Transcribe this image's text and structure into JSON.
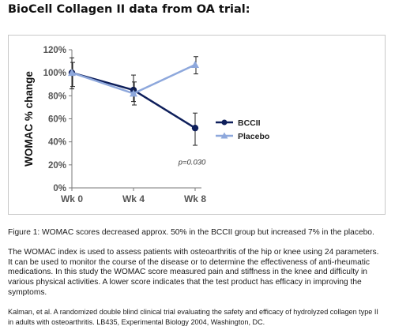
{
  "page_title": "BioCell Collagen II data from OA trial:",
  "chart_data": {
    "type": "line",
    "categories": [
      "Wk 0",
      "Wk 4",
      "Wk 8"
    ],
    "ylabel": "WOMAC % change",
    "xlabel": "",
    "ylim": [
      0,
      120
    ],
    "yticks": [
      0,
      20,
      40,
      60,
      80,
      100,
      120
    ],
    "ytick_labels": [
      "0%",
      "20%",
      "40%",
      "60%",
      "80%",
      "100%",
      "120%"
    ],
    "grid": false,
    "legend_position": "right",
    "series": [
      {
        "name": "BCCII",
        "color": "#0e1f5b",
        "marker": "circle",
        "values": [
          100,
          85,
          52
        ],
        "error_low": [
          86,
          75,
          37
        ],
        "error_high": [
          113,
          98,
          65
        ]
      },
      {
        "name": "Placebo",
        "color": "#8ea8dc",
        "marker": "triangle",
        "values": [
          100,
          82,
          107
        ],
        "error_low": [
          88,
          72,
          99
        ],
        "error_high": [
          109,
          92,
          114
        ]
      }
    ],
    "annotations": [
      {
        "text": "p=0.030",
        "x": "Wk 8",
        "y": 23
      }
    ]
  },
  "caption": "Figure 1: WOMAC scores decreased approx. 50% in the BCCII group but increased 7% in the placebo.",
  "paragraph_lines": [
    "The WOMAC index is used to assess patients with osteoarthritis of the hip or knee using 24 parameters.",
    "It can be used to monitor the course of the disease or to determine the effectiveness of anti-rheumatic",
    "medications. In this study the WOMAC score measured pain and stiffness in the knee and difficulty in",
    "various physical activities. A lower score indicates that the test product has efficacy in improving the",
    "symptoms."
  ],
  "citation_lines": [
    "Kalman, et al. A randomized double blind clinical trial evaluating the safety and efficacy of hydrolyzed collagen type II",
    "in adults with osteoarthritis. LB435, Experimental Biology 2004, Washington, DC."
  ]
}
